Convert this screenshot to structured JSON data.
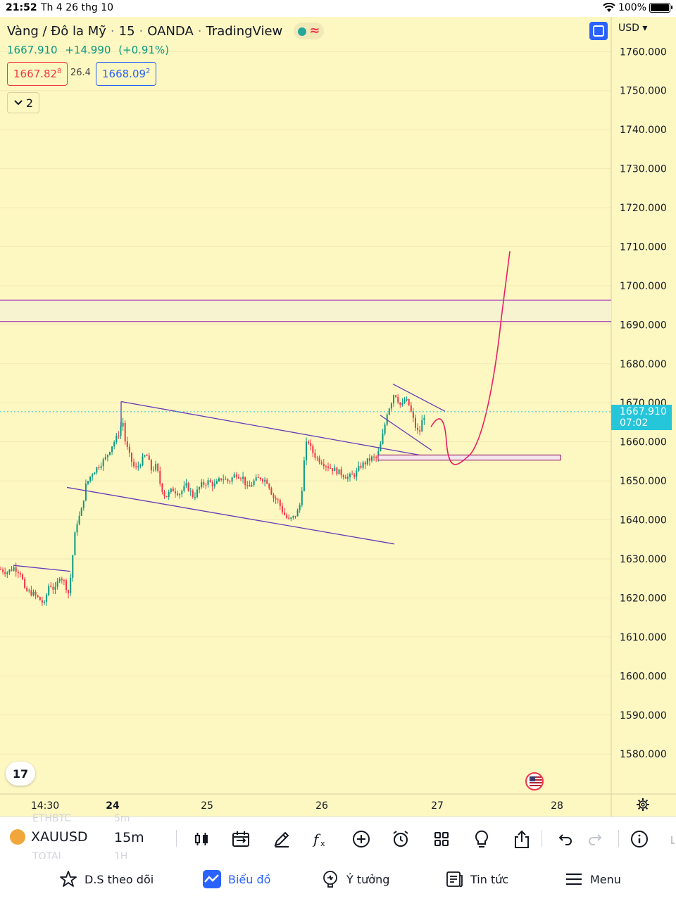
{
  "status_bar": {
    "time": "21:52",
    "date": "Th 4 26 thg 10",
    "battery": "100%"
  },
  "legend": {
    "symbol_name": "Vàng / Đô la Mỹ",
    "interval": "15",
    "exchange": "OANDA",
    "platform": "TradingView",
    "last": "1667.910",
    "change": "+14.990",
    "change_pct": "(+0.91%)",
    "sell_price": "1667.82",
    "sell_price_sup": "8",
    "spread": "26.4",
    "buy_price": "1668.09",
    "buy_price_sup": "2",
    "collapsed_count": "2"
  },
  "currency_label": "USD",
  "price_tag": {
    "price": "1667.910",
    "countdown": "07:02"
  },
  "toolbar": {
    "symbol": "XAUUSD",
    "interval": "15m",
    "ghost_above": [
      "ETHBTC",
      "5m"
    ],
    "ghost_below": [
      "TOTAL",
      "1H"
    ]
  },
  "tabs": [
    {
      "label": "D.S theo dõi",
      "icon": "star-icon"
    },
    {
      "label": "Biểu đồ",
      "icon": "chart-icon"
    },
    {
      "label": "Ý tưởng",
      "icon": "ideas-icon"
    },
    {
      "label": "Tin tức",
      "icon": "news-icon"
    },
    {
      "label": "Menu",
      "icon": "menu-icon"
    }
  ],
  "colors": {
    "background": "#fdf7c2",
    "candle_up": "#089981",
    "candle_down": "#f23645",
    "trendline": "#673ab7",
    "projection": "#e91e63",
    "last_price": "#26c6da"
  },
  "chart_data": {
    "type": "candlestick",
    "symbol": "XAUUSD",
    "interval": "15",
    "y_ticks": [
      "1760.000",
      "1750.000",
      "1740.000",
      "1730.000",
      "1720.000",
      "1710.000",
      "1700.000",
      "1690.000",
      "1680.000",
      "1670.000",
      "1660.000",
      "1650.000",
      "1640.000",
      "1630.000",
      "1620.000",
      "1610.000",
      "1600.000",
      "1590.000",
      "1580.000"
    ],
    "ylim": [
      1577,
      1765
    ],
    "x_ticks": [
      "14:30",
      "24",
      "25",
      "26",
      "27",
      "28"
    ],
    "last_price": 1667.91,
    "path_points": [
      [
        0,
        1627.5
      ],
      [
        10,
        1626.8
      ],
      [
        20,
        1628
      ],
      [
        30,
        1626.5
      ],
      [
        35,
        1622
      ],
      [
        45,
        1621.5
      ],
      [
        55,
        1620
      ],
      [
        63,
        1618.5
      ],
      [
        70,
        1624
      ],
      [
        78,
        1622
      ],
      [
        85,
        1626
      ],
      [
        92,
        1624
      ],
      [
        98,
        1621
      ],
      [
        102,
        1629
      ],
      [
        108,
        1639
      ],
      [
        115,
        1642
      ],
      [
        122,
        1649
      ],
      [
        130,
        1652
      ],
      [
        140,
        1654
      ],
      [
        150,
        1656
      ],
      [
        158,
        1659
      ],
      [
        165,
        1661
      ],
      [
        170,
        1663
      ],
      [
        174,
        1666
      ],
      [
        178,
        1660
      ],
      [
        185,
        1656
      ],
      [
        192,
        1653
      ],
      [
        200,
        1655
      ],
      [
        208,
        1657
      ],
      [
        215,
        1653
      ],
      [
        222,
        1654
      ],
      [
        228,
        1649
      ],
      [
        235,
        1646
      ],
      [
        245,
        1648
      ],
      [
        255,
        1647
      ],
      [
        265,
        1649
      ],
      [
        275,
        1646
      ],
      [
        285,
        1649
      ],
      [
        295,
        1650
      ],
      [
        305,
        1649
      ],
      [
        315,
        1651
      ],
      [
        325,
        1650
      ],
      [
        335,
        1652
      ],
      [
        345,
        1651
      ],
      [
        352,
        1648
      ],
      [
        360,
        1650
      ],
      [
        370,
        1651
      ],
      [
        380,
        1650
      ],
      [
        388,
        1646
      ],
      [
        395,
        1645
      ],
      [
        402,
        1642
      ],
      [
        410,
        1640
      ],
      [
        418,
        1641
      ],
      [
        425,
        1643
      ],
      [
        430,
        1650
      ],
      [
        433,
        1658
      ],
      [
        437,
        1661
      ],
      [
        442,
        1658
      ],
      [
        450,
        1656
      ],
      [
        458,
        1655
      ],
      [
        465,
        1654
      ],
      [
        475,
        1653
      ],
      [
        485,
        1652
      ],
      [
        495,
        1651
      ],
      [
        505,
        1652
      ],
      [
        512,
        1654
      ],
      [
        520,
        1655
      ],
      [
        528,
        1656
      ],
      [
        535,
        1656
      ],
      [
        540,
        1659
      ],
      [
        545,
        1663
      ],
      [
        550,
        1668
      ],
      [
        555,
        1670
      ],
      [
        560,
        1673
      ],
      [
        565,
        1671
      ],
      [
        570,
        1669
      ],
      [
        575,
        1671
      ],
      [
        580,
        1670
      ],
      [
        585,
        1667
      ],
      [
        590,
        1664
      ],
      [
        595,
        1662
      ],
      [
        600,
        1666
      ],
      [
        605,
        1668
      ]
    ],
    "annotations": {
      "resistance_zone": [
        1691,
        1696.5
      ],
      "support_box": [
        1655.5,
        1656.8
      ],
      "upper_channel": [
        [
          172,
          1670.5
        ],
        [
          636,
          1655.5
        ]
      ],
      "lower_channel": [
        [
          95,
          1648.5
        ],
        [
          560,
          1634
        ]
      ],
      "flag_top": [
        [
          558,
          1675
        ],
        [
          632,
          1668
        ]
      ],
      "flag_bottom": [
        [
          540,
          1667
        ],
        [
          613,
          1658
        ]
      ],
      "left_line": [
        [
          20,
          1628.5
        ],
        [
          100,
          1627
        ]
      ]
    }
  }
}
